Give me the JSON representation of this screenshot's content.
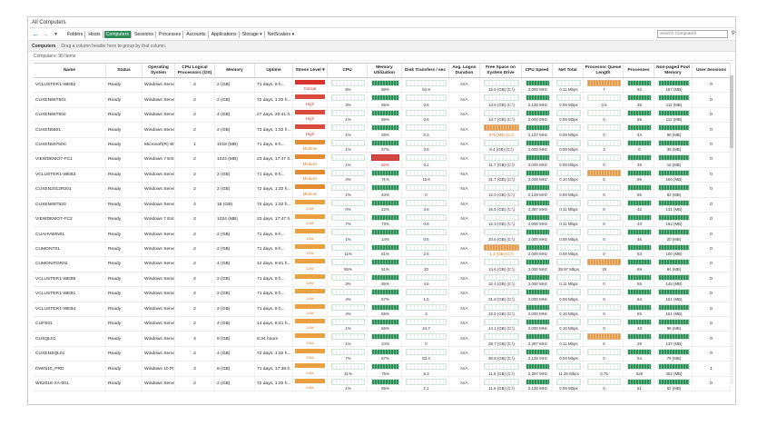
{
  "window_title": "All Computers",
  "nav_tabs": [
    "Folders",
    "Hosts",
    "Computers",
    "Sessions",
    "Processes",
    "Accounts",
    "Applications",
    "Storage ▾",
    "NetScalers ▾"
  ],
  "active_tab": "Computers",
  "search_placeholder": "Search Computers",
  "group_title": "Computers",
  "group_hint": "Drag a column header here to group by that column.",
  "count_text": "Computers: 90 Items",
  "columns": [
    "Name",
    "Status",
    "Operating System",
    "CPU Logical Processors (OS)",
    "Memory",
    "Uptime",
    "Stress Level ▾",
    "CPU",
    "Memory Utilization",
    "Disk Transfers / sec",
    "Avg. Logon Duration",
    "Free Space on System Drive",
    "CPU Speed",
    "Net Total",
    "Processor Queue Length",
    "Processes",
    "Non-paged Pool Memory",
    "User Sessions"
  ],
  "colors": {
    "accent": "#2e8b57",
    "critical": "#d9312b",
    "high": "#d94a3c",
    "medium": "#e48a30",
    "low": "#e8a040"
  },
  "rows": [
    {
      "name": "VCLUSTER1-WEB2",
      "status": "Ready",
      "os": "Windows Serve...",
      "cpus": "2",
      "mem": "2 (GB)",
      "uptime": "71 days, 9 h...",
      "stress": "Critical",
      "cpu": "5%",
      "memu": "68%",
      "disk": "64.9",
      "logon": "N/A",
      "free": "32.6 (GB) (C:\\)",
      "speed": "2,000 MHz",
      "net": "0.11 Mbps",
      "pql": "7",
      "procs": "62",
      "npp": "167 (MB)",
      "sessions": "0"
    },
    {
      "name": "CUXEN65T501",
      "status": "Ready",
      "os": "Windows Serve...",
      "cpus": "2",
      "mem": "2 (GB)",
      "uptime": "72 days, 1:32 h...",
      "stress": "High",
      "cpu": "3%",
      "memu": "55%",
      "disk": "0.5",
      "logon": "N/A",
      "free": "13.6 (GB) (C:\\)",
      "speed": "2,128 MHz",
      "net": "0.09 Mbps",
      "pql": "0.5",
      "procs": "35",
      "npp": "111 (MB)",
      "sessions": "0"
    },
    {
      "name": "CUXEN65T502",
      "status": "Ready",
      "os": "Windows Serve...",
      "cpus": "2",
      "mem": "4 (GB)",
      "uptime": "27 days, 20:41 h...",
      "stress": "High",
      "cpu": "1%",
      "memu": "56%",
      "disk": "0.5",
      "logon": "N/A",
      "free": "13.7 (GB) (C:\\)",
      "speed": "2,000 MHz",
      "net": "0.09 Mbps",
      "pql": "0",
      "procs": "55",
      "npp": "112 (MB)",
      "sessions": "0"
    },
    {
      "name": "CUXEN5601",
      "status": "Ready",
      "os": "Windows Serve...",
      "cpus": "2",
      "mem": "2 (GB)",
      "uptime": "72 days, 1:32 h...",
      "stress": "High",
      "cpu": "1%",
      "memu": "29%",
      "disk": "0.3",
      "logon": "N/A",
      "free": "876 (MB) (C:\\)",
      "speed": "2,127 MHz",
      "net": "0.09 Mbps",
      "pql": "0",
      "procs": "44",
      "npp": "90 (MB)",
      "sessions": "0"
    },
    {
      "name": "CUXEN50750C",
      "status": "Ready",
      "os": "Microsoft(R) W...",
      "cpus": "1",
      "mem": "1018 (MB)",
      "uptime": "71 days, 9 h...",
      "stress": "Medium",
      "cpu": "1%",
      "memu": "57%",
      "disk": "3.6",
      "logon": "N/A",
      "free": "8.4 (GB) (C:\\)",
      "speed": "2,000 MHz",
      "net": "0.09 Mbps",
      "pql": "3",
      "procs": "0",
      "npp": "35 (MB)",
      "sessions": "0"
    },
    {
      "name": "VIEWDEMO7-FC1",
      "status": "Ready",
      "os": "Windows 7 Ent...",
      "cpus": "2",
      "mem": "1024 (MB)",
      "uptime": "23 days, 17:47 h...",
      "stress": "Medium",
      "cpu": "1%",
      "memu": "82%",
      "disk": "0.1",
      "logon": "N/A",
      "free": "11.7 (GB) (C:\\)",
      "speed": "2,000 MHz",
      "net": "0.09 Mbps",
      "pql": "0",
      "procs": "45",
      "npp": "18 (MB)",
      "sessions": "0"
    },
    {
      "name": "VCLUSTER1-WEB3",
      "status": "Ready",
      "os": "Windows Serve...",
      "cpus": "2",
      "mem": "2 (GB)",
      "uptime": "71 days, 9 h...",
      "stress": "Medium",
      "cpu": "4%",
      "memu": "71%",
      "disk": "15.6",
      "logon": "N/A",
      "free": "31.7 (GB) (C:\\)",
      "speed": "2,000 MHz",
      "net": "0.10 Mbps",
      "pql": "5",
      "procs": "56",
      "npp": "160 (MB)",
      "sessions": "0"
    },
    {
      "name": "CUXEN2012R201",
      "status": "Ready",
      "os": "Windows Serve...",
      "cpus": "2",
      "mem": "2 (GB)",
      "uptime": "72 days, 1:32 h...",
      "stress": "Medium",
      "cpu": "1%",
      "memu": "43%",
      "disk": "0",
      "logon": "N/A",
      "free": "12.0 (GB) (C:\\)",
      "speed": "2,128 MHz",
      "net": "0.08 Mbps",
      "pql": "0",
      "procs": "55",
      "npp": "82 (MB)",
      "sessions": "0"
    },
    {
      "name": "CUXEN65T520",
      "status": "Ready",
      "os": "Windows Serve...",
      "cpus": "4",
      "mem": "16 (GB)",
      "uptime": "72 days, 1:32 h...",
      "stress": "Low",
      "cpu": "0%",
      "memu": "22%",
      "disk": "3.8",
      "logon": "N/A",
      "free": "16.5 (GB) (C:\\)",
      "speed": "2,397 MHz",
      "net": "0.11 Mbps",
      "pql": "0",
      "procs": "42",
      "npp": "131 (MB)",
      "sessions": "0"
    },
    {
      "name": "VIEWDEMO7-FC2",
      "status": "Ready",
      "os": "Windows 7 Ent...",
      "cpus": "2",
      "mem": "1024 (MB)",
      "uptime": "23 days, 17:47 h...",
      "stress": "Low",
      "cpu": "7%",
      "memu": "73%",
      "disk": "0.9",
      "logon": "N/A",
      "free": "12.3 (GB) (C:\\)",
      "speed": "2,000 MHz",
      "net": "0.11 Mbps",
      "pql": "0",
      "procs": "43",
      "npp": "162 (MB)",
      "sessions": "0"
    },
    {
      "name": "CUAHVWIN01",
      "status": "Ready",
      "os": "Windows Serve...",
      "cpus": "2",
      "mem": "2 (GB)",
      "uptime": "71 days, 9 h...",
      "stress": "Low",
      "cpu": "1%",
      "memu": "14%",
      "disk": "0.5",
      "logon": "N/A",
      "free": "20.6 (GB) (C:\\)",
      "speed": "2,000 MHz",
      "net": "0.09 Mbps",
      "pql": "0",
      "procs": "46",
      "npp": "20 (MB)",
      "sessions": "0"
    },
    {
      "name": "CUMONT01",
      "status": "Ready",
      "os": "Windows Serve...",
      "cpus": "2",
      "mem": "2 (GB)",
      "uptime": "71 days, 9 h...",
      "stress": "Low",
      "cpu": "11%",
      "memu": "51%",
      "disk": "2.6",
      "logon": "N/A",
      "free": "1.4 (GB) (C:\\)",
      "speed": "2,000 MHz",
      "net": "0.09 Mbps",
      "pql": "0",
      "procs": "53",
      "npp": "100 (MB)",
      "sessions": "0"
    },
    {
      "name": "CUMONITOR02",
      "status": "Ready",
      "os": "Windows Serve...",
      "cpus": "2",
      "mem": "4 (GB)",
      "uptime": "12 days, 8:41 h...",
      "stress": "Low",
      "cpu": "55%",
      "memu": "51%",
      "disk": "20",
      "logon": "N/A",
      "free": "14.6 (GB) (C:\\)",
      "speed": "2,000 MHz",
      "net": "35.97 Mbps",
      "pql": "19",
      "procs": "69",
      "npp": "84 (MB)",
      "sessions": "0"
    },
    {
      "name": "VCLUSTER1-WEB5",
      "status": "Ready",
      "os": "Windows Serve...",
      "cpus": "2",
      "mem": "2 (GB)",
      "uptime": "71 days, 9 h...",
      "stress": "Low",
      "cpu": "3%",
      "memu": "55%",
      "disk": "4.6",
      "logon": "N/A",
      "free": "32.4 (GB) (C:\\)",
      "speed": "2,000 MHz",
      "net": "0.11 Mbps",
      "pql": "0",
      "procs": "55",
      "npp": "145 (MB)",
      "sessions": "0"
    },
    {
      "name": "VCLUSTER1-WEB1",
      "status": "Ready",
      "os": "Windows Serve...",
      "cpus": "2",
      "mem": "2 (GB)",
      "uptime": "71 days, 9 h...",
      "stress": "Low",
      "cpu": "4%",
      "memu": "57%",
      "disk": "1.5",
      "logon": "N/A",
      "free": "31.8 (GB) (C:\\)",
      "speed": "2,000 MHz",
      "net": "0.09 Mbps",
      "pql": "0",
      "procs": "54",
      "npp": "151 (MB)",
      "sessions": "0"
    },
    {
      "name": "VCLUSTER1-WEB4",
      "status": "Ready",
      "os": "Windows Serve...",
      "cpus": "2",
      "mem": "2 (GB)",
      "uptime": "71 days, 9 h...",
      "stress": "Low",
      "cpu": "4%",
      "memu": "55%",
      "disk": "3",
      "logon": "N/A",
      "free": "32.5 (GB) (C:\\)",
      "speed": "2,000 MHz",
      "net": "0.10 Mbps",
      "pql": "0",
      "procs": "65",
      "npp": "151 (MB)",
      "sessions": "0"
    },
    {
      "name": "CUFS01",
      "status": "Ready",
      "os": "Windows Serve...",
      "cpus": "2",
      "mem": "4 (GB)",
      "uptime": "14 days, 6:41 h...",
      "stress": "Low",
      "cpu": "1%",
      "memu": "56%",
      "disk": "24.7",
      "logon": "N/A",
      "free": "14.1 (GB) (C:\\)",
      "speed": "2,000 MHz",
      "net": "0.10 Mbps",
      "pql": "0",
      "procs": "43",
      "npp": "96 (MB)",
      "sessions": "0"
    },
    {
      "name": "CUSQL01",
      "status": "Ready",
      "os": "Windows Serve...",
      "cpus": "4",
      "mem": "8 (GB)",
      "uptime": "8:34 hours",
      "stress": "Low",
      "cpu": "1%",
      "memu": "24%",
      "disk": "0",
      "logon": "N/A",
      "free": "28.7 (GB) (C:\\)",
      "speed": "2,397 MHz",
      "net": "0.11 Mbps",
      "pql": "6",
      "procs": "29",
      "npp": "137 (MB)",
      "sessions": "0"
    },
    {
      "name": "CUXENSQL01",
      "status": "Ready",
      "os": "Windows Serve...",
      "cpus": "2",
      "mem": "4 (GB)",
      "uptime": "72 days, 1:32 h...",
      "stress": "Low",
      "cpu": "7%",
      "memu": "57%",
      "disk": "53.4",
      "logon": "N/A",
      "free": "30.8 (GB) (C:\\)",
      "speed": "2,128 MHz",
      "net": "0.09 Mbps",
      "pql": "0",
      "procs": "54",
      "npp": "79 (MB)",
      "sessions": "0"
    },
    {
      "name": "DWIN10_PRD",
      "status": "Ready",
      "os": "Windows 10 Pro",
      "cpus": "4",
      "mem": "8 (GB)",
      "uptime": "71 days, 17:38 h...",
      "stress": "Low",
      "cpu": "31%",
      "memu": "75%",
      "disk": "5.3",
      "logon": "N/A",
      "free": "11.8 (GB) (C:\\)",
      "speed": "2,397 MHz",
      "net": "11.28 Mbps",
      "pql": "0.75",
      "procs": "528",
      "npp": "402 (MB)",
      "sessions": "1"
    },
    {
      "name": "WS2016-XA-001",
      "status": "Ready",
      "os": "Windows Serve...",
      "cpus": "2",
      "mem": "2 (GB)",
      "uptime": "72 days, 1:32 h...",
      "stress": "Low",
      "cpu": "1%",
      "memu": "55%",
      "disk": "2.1",
      "logon": "N/A",
      "free": "11.6 (GB) (C:\\)",
      "speed": "2,128 MHz",
      "net": "0.09 Mbps",
      "pql": "0",
      "procs": "51",
      "npp": "62 (MB)",
      "sessions": "0"
    }
  ]
}
